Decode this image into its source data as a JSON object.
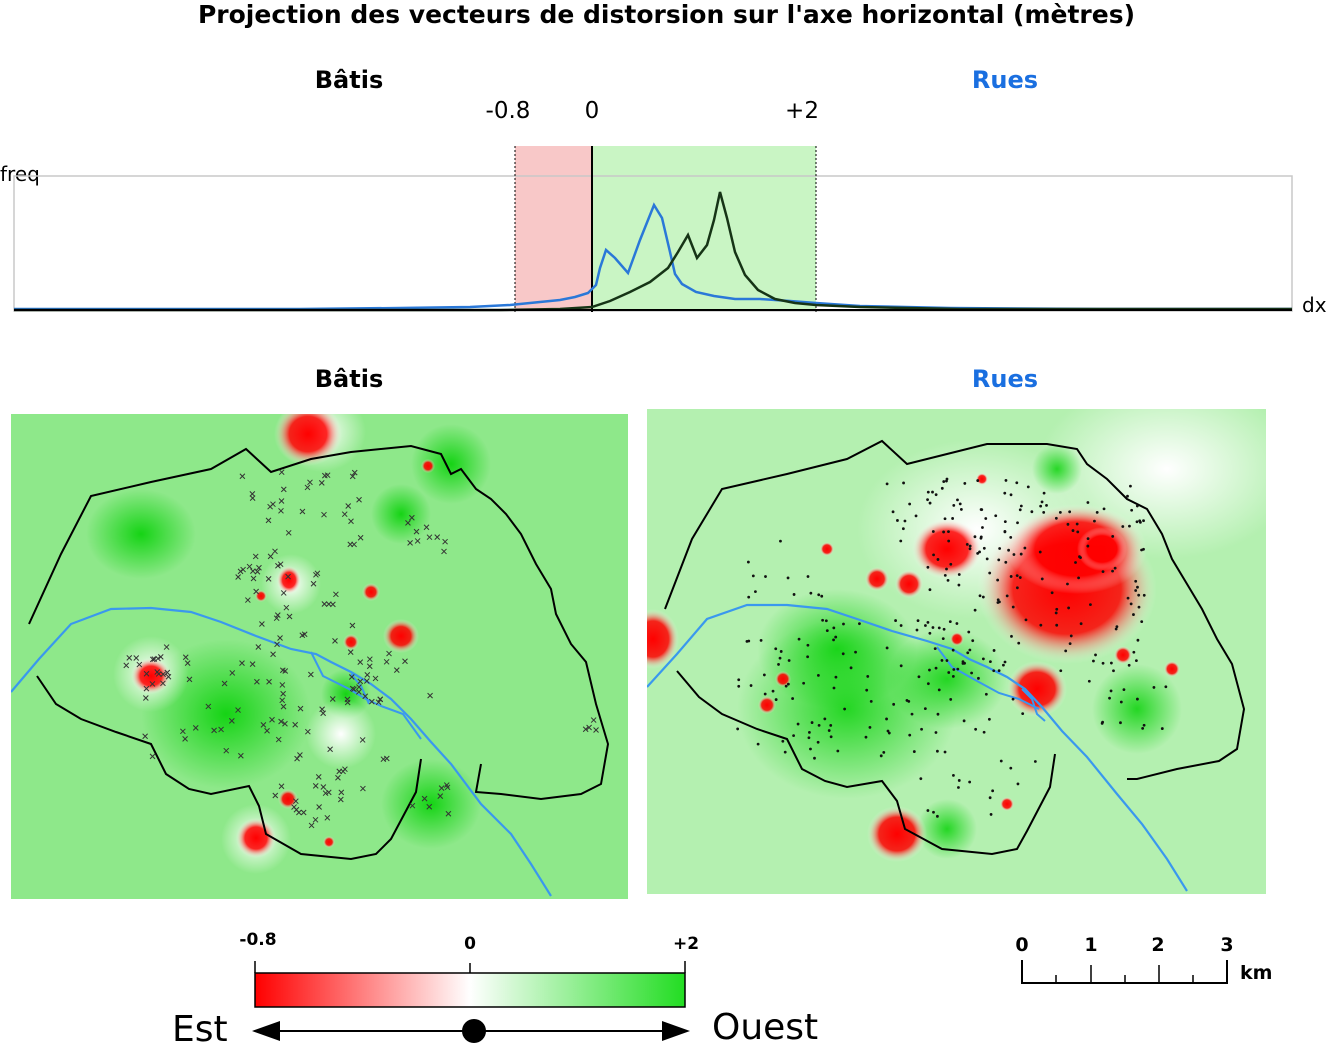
{
  "title": "Projection des vecteurs de distorsion sur l'axe horizontal (mètres)",
  "histogram": {
    "labels": {
      "left": "Bâtis",
      "right": "Rues"
    },
    "ticks": [
      "-0.8",
      "0",
      "+2"
    ],
    "y_axis_label": "freq",
    "x_axis_label": "dx",
    "colors": {
      "buildings": "#1a1a1a",
      "streets": "#2a78d8",
      "negative_zone": "#f8c8c8",
      "positive_zone": "#c9f5c4"
    }
  },
  "maps": {
    "left_title": "Bâtis",
    "right_title": "Rues",
    "colors": {
      "negative": "#ff0000",
      "positive": "#00d000",
      "neutral": "#ffffff",
      "river": "#3a98ee",
      "boundary": "#000000"
    }
  },
  "legend": {
    "min_label": "-0.8",
    "mid_label": "0",
    "max_label": "+2",
    "left_direction": "Est",
    "right_direction": "Ouest",
    "gradient": [
      "#ff0000",
      "#ffffff",
      "#22dd22"
    ]
  },
  "scale_bar": {
    "labels": [
      "0",
      "1",
      "2",
      "3"
    ],
    "unit": "km"
  }
}
